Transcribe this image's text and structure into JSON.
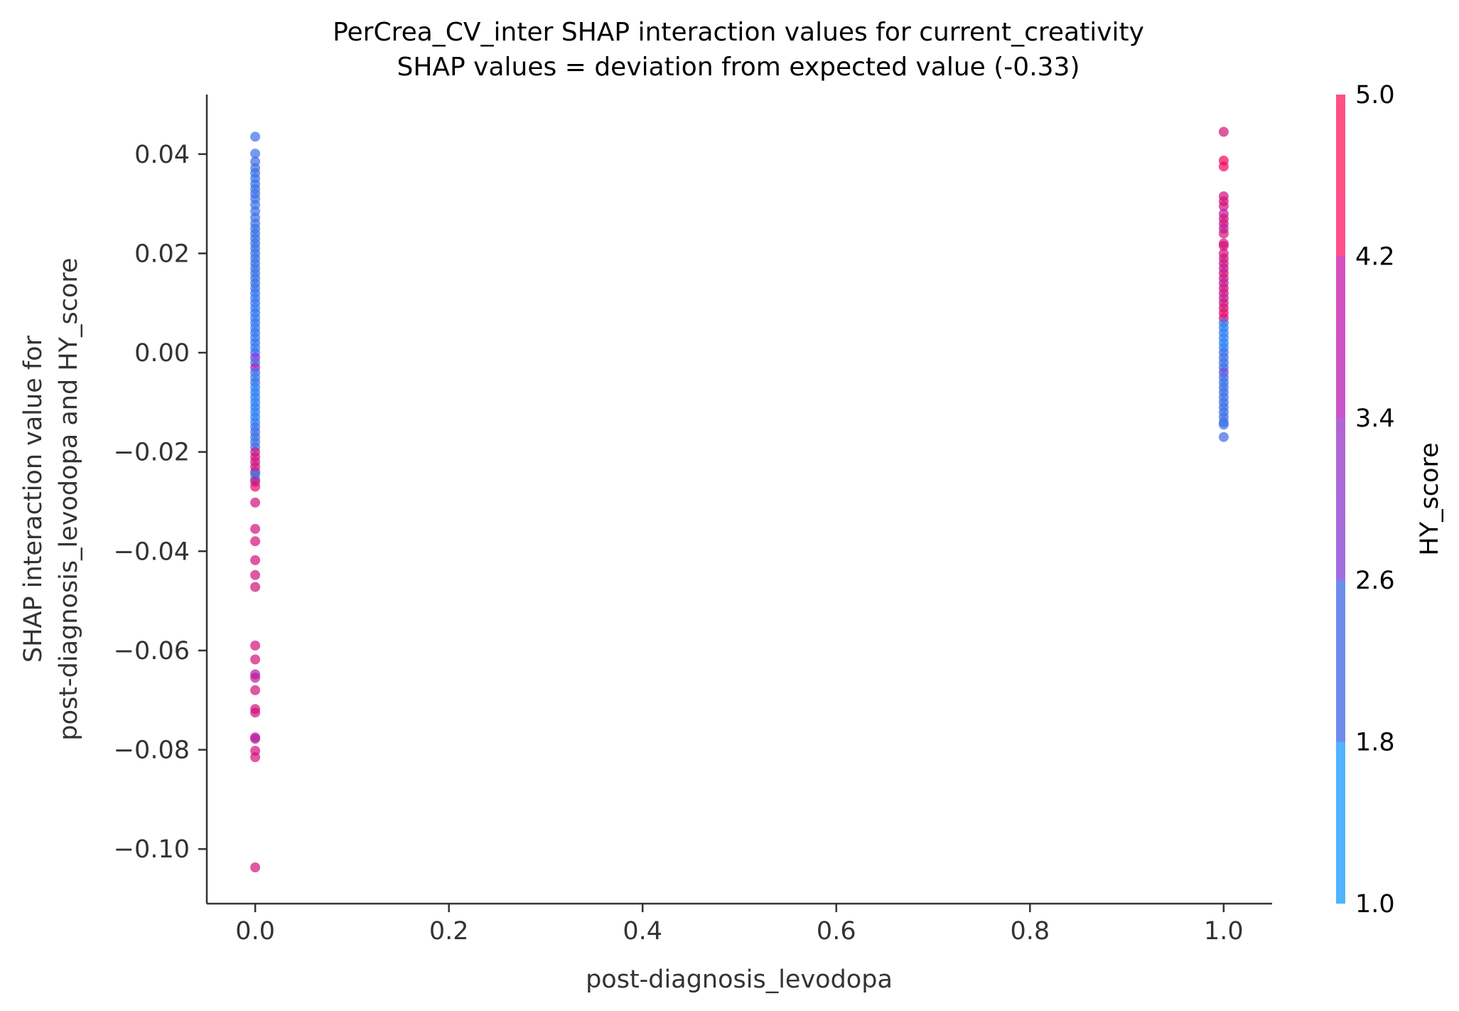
{
  "chart_data": {
    "type": "scatter",
    "title": "PerCrea_CV_inter SHAP interaction values for current_creativity",
    "subtitle": "SHAP values = deviation from expected value (-0.33)",
    "xlabel": "post-diagnosis_levodopa",
    "ylabel_line1": "SHAP interaction value for",
    "ylabel_line2": "post-diagnosis_levodopa and HY_score",
    "xlim": [
      -0.05,
      1.05
    ],
    "ylim": [
      -0.111,
      0.052
    ],
    "xticks": [
      {
        "value": 0.0,
        "label": "0.0"
      },
      {
        "value": 0.2,
        "label": "0.2"
      },
      {
        "value": 0.4,
        "label": "0.4"
      },
      {
        "value": 0.6,
        "label": "0.6"
      },
      {
        "value": 0.8,
        "label": "0.8"
      },
      {
        "value": 1.0,
        "label": "1.0"
      }
    ],
    "yticks": [
      {
        "value": 0.04,
        "label": "0.04"
      },
      {
        "value": 0.02,
        "label": "0.02"
      },
      {
        "value": 0.0,
        "label": "0.00"
      },
      {
        "value": -0.02,
        "label": "−0.02"
      },
      {
        "value": -0.04,
        "label": "−0.04"
      },
      {
        "value": -0.06,
        "label": "−0.06"
      },
      {
        "value": -0.08,
        "label": "−0.08"
      },
      {
        "value": -0.1,
        "label": "−0.10"
      }
    ],
    "colorbar": {
      "label": "HY_score",
      "range": [
        1.0,
        5.0
      ],
      "ticks": [
        {
          "value": 1.0,
          "label": "1.0"
        },
        {
          "value": 1.8,
          "label": "1.8"
        },
        {
          "value": 2.6,
          "label": "2.6"
        },
        {
          "value": 3.4,
          "label": "3.4"
        },
        {
          "value": 4.2,
          "label": "4.2"
        },
        {
          "value": 5.0,
          "label": "5.0"
        }
      ],
      "bands": [
        {
          "from": 1.0,
          "to": 1.8,
          "color": "#1e90ff"
        },
        {
          "from": 1.8,
          "to": 2.6,
          "color": "#4169e1"
        },
        {
          "from": 2.6,
          "to": 3.4,
          "color": "#8a2be2"
        },
        {
          "from": 3.4,
          "to": 4.2,
          "color": "#c71585"
        },
        {
          "from": 4.2,
          "to": 5.0,
          "color": "#ff1493"
        },
        {
          "from": 5.0,
          "to": 5.0,
          "color": "#ff0052"
        }
      ]
    },
    "points": [
      {
        "x": 0.0,
        "y": 0.0435,
        "hy": 2.0
      },
      {
        "x": 0.0,
        "y": 0.0401,
        "hy": 2.0
      },
      {
        "x": 0.0,
        "y": 0.0385,
        "hy": 2.2
      },
      {
        "x": 0.0,
        "y": 0.0372,
        "hy": 2.0
      },
      {
        "x": 0.0,
        "y": 0.0362,
        "hy": 2.0
      },
      {
        "x": 0.0,
        "y": 0.0351,
        "hy": 2.0
      },
      {
        "x": 0.0,
        "y": 0.034,
        "hy": 2.0
      },
      {
        "x": 0.0,
        "y": 0.033,
        "hy": 2.0
      },
      {
        "x": 0.0,
        "y": 0.032,
        "hy": 2.0
      },
      {
        "x": 0.0,
        "y": 0.031,
        "hy": 2.0
      },
      {
        "x": 0.0,
        "y": 0.0298,
        "hy": 2.0
      },
      {
        "x": 0.0,
        "y": 0.0285,
        "hy": 2.0
      },
      {
        "x": 0.0,
        "y": 0.0272,
        "hy": 2.0
      },
      {
        "x": 0.0,
        "y": 0.026,
        "hy": 2.0
      },
      {
        "x": 0.0,
        "y": 0.025,
        "hy": 2.0
      },
      {
        "x": 0.0,
        "y": 0.024,
        "hy": 2.0
      },
      {
        "x": 0.0,
        "y": 0.023,
        "hy": 2.0
      },
      {
        "x": 0.0,
        "y": 0.022,
        "hy": 2.0
      },
      {
        "x": 0.0,
        "y": 0.021,
        "hy": 2.0
      },
      {
        "x": 0.0,
        "y": 0.02,
        "hy": 2.0
      },
      {
        "x": 0.0,
        "y": 0.019,
        "hy": 2.0
      },
      {
        "x": 0.0,
        "y": 0.018,
        "hy": 2.0
      },
      {
        "x": 0.0,
        "y": 0.017,
        "hy": 2.0
      },
      {
        "x": 0.0,
        "y": 0.016,
        "hy": 2.0
      },
      {
        "x": 0.0,
        "y": 0.015,
        "hy": 2.0
      },
      {
        "x": 0.0,
        "y": 0.014,
        "hy": 2.0
      },
      {
        "x": 0.0,
        "y": 0.013,
        "hy": 2.0
      },
      {
        "x": 0.0,
        "y": 0.012,
        "hy": 2.0
      },
      {
        "x": 0.0,
        "y": 0.011,
        "hy": 1.5
      },
      {
        "x": 0.0,
        "y": 0.01,
        "hy": 2.0
      },
      {
        "x": 0.0,
        "y": 0.009,
        "hy": 1.5
      },
      {
        "x": 0.0,
        "y": 0.008,
        "hy": 2.0
      },
      {
        "x": 0.0,
        "y": 0.007,
        "hy": 1.5
      },
      {
        "x": 0.0,
        "y": 0.006,
        "hy": 2.0
      },
      {
        "x": 0.0,
        "y": 0.005,
        "hy": 1.5
      },
      {
        "x": 0.0,
        "y": 0.004,
        "hy": 2.0
      },
      {
        "x": 0.0,
        "y": 0.003,
        "hy": 1.5
      },
      {
        "x": 0.0,
        "y": 0.002,
        "hy": 2.0
      },
      {
        "x": 0.0,
        "y": 0.001,
        "hy": 1.5
      },
      {
        "x": 0.0,
        "y": 0.0,
        "hy": 2.0
      },
      {
        "x": 0.0,
        "y": -0.001,
        "hy": 3.2
      },
      {
        "x": 0.0,
        "y": -0.002,
        "hy": 2.0
      },
      {
        "x": 0.0,
        "y": -0.003,
        "hy": 3.6
      },
      {
        "x": 0.0,
        "y": -0.004,
        "hy": 2.0
      },
      {
        "x": 0.0,
        "y": -0.005,
        "hy": 1.5
      },
      {
        "x": 0.0,
        "y": -0.006,
        "hy": 2.0
      },
      {
        "x": 0.0,
        "y": -0.007,
        "hy": 1.5
      },
      {
        "x": 0.0,
        "y": -0.008,
        "hy": 1.5
      },
      {
        "x": 0.0,
        "y": -0.009,
        "hy": 1.5
      },
      {
        "x": 0.0,
        "y": -0.01,
        "hy": 1.5
      },
      {
        "x": 0.0,
        "y": -0.011,
        "hy": 1.5
      },
      {
        "x": 0.0,
        "y": -0.012,
        "hy": 1.5
      },
      {
        "x": 0.0,
        "y": -0.013,
        "hy": 1.5
      },
      {
        "x": 0.0,
        "y": -0.014,
        "hy": 1.5
      },
      {
        "x": 0.0,
        "y": -0.015,
        "hy": 2.0
      },
      {
        "x": 0.0,
        "y": -0.016,
        "hy": 2.0
      },
      {
        "x": 0.0,
        "y": -0.017,
        "hy": 2.0
      },
      {
        "x": 0.0,
        "y": -0.018,
        "hy": 2.0
      },
      {
        "x": 0.0,
        "y": -0.019,
        "hy": 2.0
      },
      {
        "x": 0.0,
        "y": -0.02,
        "hy": 4.0
      },
      {
        "x": 0.0,
        "y": -0.021,
        "hy": 4.2
      },
      {
        "x": 0.0,
        "y": -0.022,
        "hy": 4.0
      },
      {
        "x": 0.0,
        "y": -0.023,
        "hy": 4.2
      },
      {
        "x": 0.0,
        "y": -0.024,
        "hy": 4.0
      },
      {
        "x": 0.0,
        "y": -0.0245,
        "hy": 2.0
      },
      {
        "x": 0.0,
        "y": -0.0255,
        "hy": 2.0
      },
      {
        "x": 0.0,
        "y": -0.026,
        "hy": 4.2
      },
      {
        "x": 0.0,
        "y": -0.027,
        "hy": 4.5
      },
      {
        "x": 0.0,
        "y": -0.0302,
        "hy": 4.2
      },
      {
        "x": 0.0,
        "y": -0.0355,
        "hy": 4.2
      },
      {
        "x": 0.0,
        "y": -0.038,
        "hy": 4.2
      },
      {
        "x": 0.0,
        "y": -0.0418,
        "hy": 4.2
      },
      {
        "x": 0.0,
        "y": -0.0448,
        "hy": 4.2
      },
      {
        "x": 0.0,
        "y": -0.0472,
        "hy": 4.2
      },
      {
        "x": 0.0,
        "y": -0.059,
        "hy": 4.2
      },
      {
        "x": 0.0,
        "y": -0.0618,
        "hy": 4.2
      },
      {
        "x": 0.0,
        "y": -0.0648,
        "hy": 3.8
      },
      {
        "x": 0.0,
        "y": -0.0655,
        "hy": 3.8
      },
      {
        "x": 0.0,
        "y": -0.068,
        "hy": 4.2
      },
      {
        "x": 0.0,
        "y": -0.0718,
        "hy": 4.2
      },
      {
        "x": 0.0,
        "y": -0.0725,
        "hy": 4.2
      },
      {
        "x": 0.0,
        "y": -0.0775,
        "hy": 3.8
      },
      {
        "x": 0.0,
        "y": -0.0778,
        "hy": 3.8
      },
      {
        "x": 0.0,
        "y": -0.0802,
        "hy": 4.2
      },
      {
        "x": 0.0,
        "y": -0.0815,
        "hy": 4.2
      },
      {
        "x": 0.0,
        "y": -0.1037,
        "hy": 4.2
      },
      {
        "x": 1.0,
        "y": 0.0445,
        "hy": 4.2
      },
      {
        "x": 1.0,
        "y": 0.0387,
        "hy": 4.8
      },
      {
        "x": 1.0,
        "y": 0.0375,
        "hy": 4.8
      },
      {
        "x": 1.0,
        "y": 0.0315,
        "hy": 4.2
      },
      {
        "x": 1.0,
        "y": 0.0305,
        "hy": 4.2
      },
      {
        "x": 1.0,
        "y": 0.0295,
        "hy": 4.2
      },
      {
        "x": 1.0,
        "y": 0.028,
        "hy": 3.8
      },
      {
        "x": 1.0,
        "y": 0.027,
        "hy": 4.2
      },
      {
        "x": 1.0,
        "y": 0.026,
        "hy": 4.2
      },
      {
        "x": 1.0,
        "y": 0.025,
        "hy": 3.8
      },
      {
        "x": 1.0,
        "y": 0.024,
        "hy": 4.2
      },
      {
        "x": 1.0,
        "y": 0.022,
        "hy": 4.2
      },
      {
        "x": 1.0,
        "y": 0.0215,
        "hy": 4.2
      },
      {
        "x": 1.0,
        "y": 0.02,
        "hy": 4.2
      },
      {
        "x": 1.0,
        "y": 0.019,
        "hy": 4.2
      },
      {
        "x": 1.0,
        "y": 0.018,
        "hy": 4.2
      },
      {
        "x": 1.0,
        "y": 0.017,
        "hy": 3.8
      },
      {
        "x": 1.0,
        "y": 0.016,
        "hy": 4.2
      },
      {
        "x": 1.0,
        "y": 0.015,
        "hy": 4.2
      },
      {
        "x": 1.0,
        "y": 0.014,
        "hy": 3.8
      },
      {
        "x": 1.0,
        "y": 0.013,
        "hy": 4.2
      },
      {
        "x": 1.0,
        "y": 0.012,
        "hy": 4.2
      },
      {
        "x": 1.0,
        "y": 0.011,
        "hy": 3.8
      },
      {
        "x": 1.0,
        "y": 0.01,
        "hy": 4.2
      },
      {
        "x": 1.0,
        "y": 0.009,
        "hy": 4.2
      },
      {
        "x": 1.0,
        "y": 0.008,
        "hy": 4.5
      },
      {
        "x": 1.0,
        "y": 0.007,
        "hy": 4.5
      },
      {
        "x": 1.0,
        "y": 0.006,
        "hy": 2.0
      },
      {
        "x": 1.0,
        "y": 0.005,
        "hy": 1.5
      },
      {
        "x": 1.0,
        "y": 0.004,
        "hy": 1.5
      },
      {
        "x": 1.0,
        "y": 0.003,
        "hy": 1.5
      },
      {
        "x": 1.0,
        "y": 0.002,
        "hy": 1.5
      },
      {
        "x": 1.0,
        "y": 0.001,
        "hy": 1.5
      },
      {
        "x": 1.0,
        "y": 0.0,
        "hy": 2.0
      },
      {
        "x": 1.0,
        "y": -0.001,
        "hy": 2.0
      },
      {
        "x": 1.0,
        "y": -0.002,
        "hy": 2.0
      },
      {
        "x": 1.0,
        "y": -0.003,
        "hy": 2.0
      },
      {
        "x": 1.0,
        "y": -0.004,
        "hy": 2.8
      },
      {
        "x": 1.0,
        "y": -0.005,
        "hy": 2.0
      },
      {
        "x": 1.0,
        "y": -0.006,
        "hy": 2.0
      },
      {
        "x": 1.0,
        "y": -0.007,
        "hy": 2.0
      },
      {
        "x": 1.0,
        "y": -0.008,
        "hy": 2.0
      },
      {
        "x": 1.0,
        "y": -0.009,
        "hy": 2.0
      },
      {
        "x": 1.0,
        "y": -0.01,
        "hy": 2.0
      },
      {
        "x": 1.0,
        "y": -0.011,
        "hy": 2.0
      },
      {
        "x": 1.0,
        "y": -0.012,
        "hy": 2.0
      },
      {
        "x": 1.0,
        "y": -0.013,
        "hy": 2.0
      },
      {
        "x": 1.0,
        "y": -0.014,
        "hy": 2.0
      },
      {
        "x": 1.0,
        "y": -0.0145,
        "hy": 2.0
      },
      {
        "x": 1.0,
        "y": -0.017,
        "hy": 2.2
      }
    ]
  }
}
